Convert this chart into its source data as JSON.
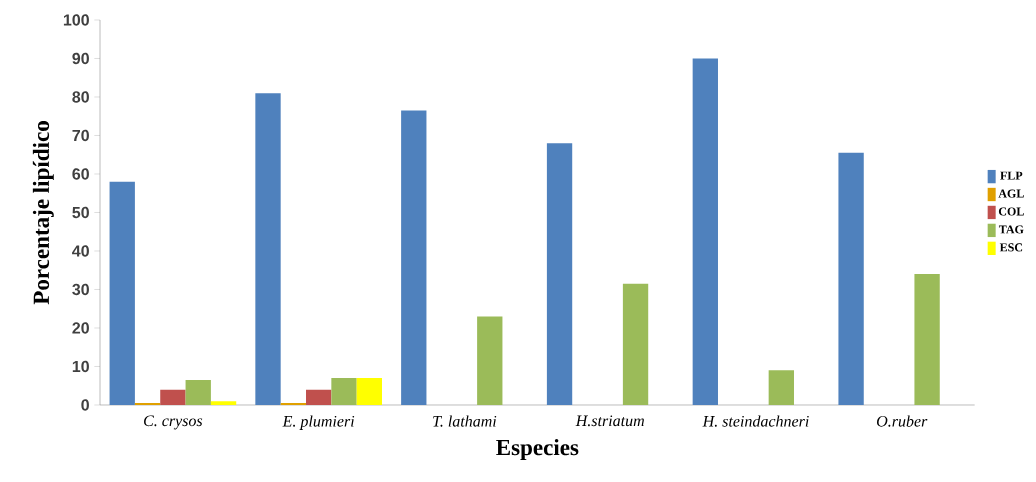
{
  "chart_data": {
    "type": "bar",
    "xlabel": "Especies",
    "ylabel": "Porcentaje lipídico",
    "categories": [
      "C. crysos",
      "E. plumieri",
      "T. lathami",
      "H.striatum",
      "H. steindachneri",
      "O.ruber"
    ],
    "series": [
      {
        "name": "FLP",
        "color": "#4f81bd",
        "values": [
          58,
          81,
          76.5,
          68,
          90,
          65.5
        ]
      },
      {
        "name": "AGL",
        "color": "#e0a000",
        "values": [
          0.5,
          0.5,
          null,
          null,
          null,
          null
        ]
      },
      {
        "name": "COL",
        "color": "#c0504d",
        "values": [
          4,
          4,
          null,
          null,
          null,
          null
        ]
      },
      {
        "name": "TAG",
        "color": "#9bbb59",
        "values": [
          6.5,
          7,
          23,
          31.5,
          9,
          34
        ]
      },
      {
        "name": "ESC",
        "color": "#ffff00",
        "values": [
          1,
          7,
          null,
          null,
          null,
          null
        ]
      }
    ],
    "ylim": [
      0,
      100
    ],
    "yticks": [
      0,
      10,
      20,
      30,
      40,
      50,
      60,
      70,
      80,
      90,
      100
    ],
    "grid": false,
    "legend": "right"
  }
}
